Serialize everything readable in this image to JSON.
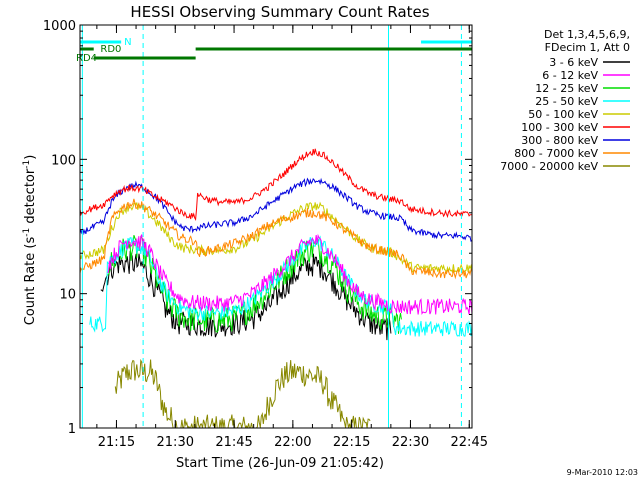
{
  "chart_data": {
    "type": "line",
    "title": "HESSI Observing Summary Count Rates",
    "xlabel": "Start Time (26-Jun-09 21:05:42)",
    "ylabel": "Count Rate (s",
    "ylabel_sup1": "-1",
    "ylabel_mid": " detector",
    "ylabel_sup2": "-1",
    "ylabel_end": ")",
    "yscale": "log",
    "ylim": [
      1,
      1000
    ],
    "xlim_minutes": [
      0,
      100
    ],
    "ytick_labels": [
      "1",
      "10",
      "100",
      "1000"
    ],
    "ytick_values": [
      1,
      10,
      100,
      1000
    ],
    "xtick_labels": [
      "21:15",
      "21:30",
      "21:45",
      "22:00",
      "22:15",
      "22:30",
      "22:45"
    ],
    "xtick_values_minutes": [
      9.3,
      24.3,
      39.3,
      54.3,
      69.3,
      84.3,
      99.3
    ],
    "legend_header": [
      "Det 1,3,4,5,6,9,",
      "FDecim 1, Att 0"
    ],
    "footer_date": "9-Mar-2010 12:03",
    "flags": [
      {
        "label": "N",
        "color": "#00ffff",
        "segments": [
          [
            0,
            10.5
          ],
          [
            87,
            100
          ]
        ]
      },
      {
        "label": "RD0",
        "color": "#007700",
        "segments": [
          [
            0,
            3.5
          ],
          [
            29.5,
            100
          ]
        ]
      },
      {
        "label": "RD4",
        "color": "#007700",
        "segments": [
          [
            3.5,
            29.5
          ]
        ]
      }
    ],
    "vlines": [
      {
        "minute": 0.6,
        "color": "#00ffff",
        "style": "solid"
      },
      {
        "minute": 16.1,
        "color": "#00ffff",
        "style": "dashed"
      },
      {
        "minute": 78.7,
        "color": "#00ffff",
        "style": "solid"
      },
      {
        "minute": 97.3,
        "color": "#00ffff",
        "style": "dashed"
      }
    ],
    "series": [
      {
        "name": "3 - 6 keV",
        "color": "#000000",
        "start": 5.3,
        "end": 79.3,
        "points": [
          [
            5.3,
            12
          ],
          [
            6.5,
            13
          ],
          [
            8,
            15.5
          ],
          [
            10,
            16.8
          ],
          [
            13,
            17
          ],
          [
            16,
            16
          ],
          [
            18,
            13
          ],
          [
            20,
            10
          ],
          [
            22,
            7.5
          ],
          [
            25,
            6
          ],
          [
            28,
            6
          ],
          [
            31,
            5.8
          ],
          [
            35,
            5.8
          ],
          [
            40,
            6
          ],
          [
            44,
            6.5
          ],
          [
            48,
            8
          ],
          [
            52,
            11
          ],
          [
            55,
            14
          ],
          [
            58,
            16
          ],
          [
            60,
            16.5
          ],
          [
            62,
            15.5
          ],
          [
            65,
            12
          ],
          [
            68,
            9
          ],
          [
            71,
            7.2
          ],
          [
            74,
            6
          ],
          [
            77,
            5.5
          ],
          [
            79.3,
            5.5
          ]
        ],
        "noise": 0.09
      },
      {
        "name": "6 - 12 keV",
        "color": "#ff00ff",
        "start": 7,
        "end": 100,
        "points": [
          [
            7,
            16
          ],
          [
            9,
            20
          ],
          [
            11,
            24
          ],
          [
            13,
            25
          ],
          [
            16,
            24
          ],
          [
            18,
            20
          ],
          [
            20,
            15
          ],
          [
            22,
            12
          ],
          [
            25,
            9.5
          ],
          [
            28,
            8.6
          ],
          [
            32,
            8.5
          ],
          [
            36,
            8.4
          ],
          [
            40,
            8.8
          ],
          [
            44,
            10
          ],
          [
            48,
            12.5
          ],
          [
            52,
            16
          ],
          [
            55,
            20
          ],
          [
            58,
            24
          ],
          [
            60,
            25
          ],
          [
            62,
            23
          ],
          [
            65,
            18
          ],
          [
            68,
            13
          ],
          [
            71,
            10
          ],
          [
            74,
            9
          ],
          [
            77,
            8.5
          ],
          [
            80,
            8
          ],
          [
            83,
            8
          ],
          [
            88,
            8
          ],
          [
            95,
            8
          ],
          [
            100,
            8
          ]
        ],
        "noise": 0.06
      },
      {
        "name": "12 - 25 keV",
        "color": "#00dd00",
        "start": 7,
        "end": 82,
        "points": [
          [
            7,
            16
          ],
          [
            9,
            18
          ],
          [
            11,
            21
          ],
          [
            13,
            22
          ],
          [
            16,
            21
          ],
          [
            18,
            16
          ],
          [
            20,
            12
          ],
          [
            22,
            9
          ],
          [
            25,
            7
          ],
          [
            28,
            6.5
          ],
          [
            32,
            6.3
          ],
          [
            36,
            6.3
          ],
          [
            40,
            6.6
          ],
          [
            44,
            8
          ],
          [
            48,
            10.5
          ],
          [
            52,
            14
          ],
          [
            55,
            18
          ],
          [
            58,
            21
          ],
          [
            60,
            22
          ],
          [
            62,
            20
          ],
          [
            65,
            16
          ],
          [
            68,
            11
          ],
          [
            71,
            8.5
          ],
          [
            74,
            7.2
          ],
          [
            77,
            6.6
          ],
          [
            80,
            6.4
          ],
          [
            82,
            6.2
          ]
        ],
        "noise": 0.1
      },
      {
        "name": "25 - 50 keV",
        "color": "#00ffff",
        "start": 2.5,
        "end": 100,
        "points": [
          [
            2.5,
            6
          ],
          [
            6.5,
            6
          ],
          [
            7,
            17
          ],
          [
            9,
            19
          ],
          [
            11,
            22
          ],
          [
            13,
            23
          ],
          [
            16,
            22
          ],
          [
            18,
            18
          ],
          [
            20,
            13
          ],
          [
            22,
            10
          ],
          [
            25,
            8
          ],
          [
            28,
            7.4
          ],
          [
            32,
            7.2
          ],
          [
            36,
            7.2
          ],
          [
            40,
            7.5
          ],
          [
            44,
            8.8
          ],
          [
            48,
            11.5
          ],
          [
            52,
            15
          ],
          [
            55,
            19
          ],
          [
            58,
            23
          ],
          [
            60,
            25
          ],
          [
            62,
            23
          ],
          [
            65,
            18
          ],
          [
            68,
            13
          ],
          [
            71,
            10
          ],
          [
            74,
            8.5
          ],
          [
            77,
            8
          ],
          [
            79,
            8
          ],
          [
            80.3,
            5.6
          ],
          [
            84,
            5.5
          ],
          [
            90,
            5.5
          ],
          [
            95,
            5.5
          ],
          [
            100,
            5.5
          ]
        ],
        "noise": 0.06
      },
      {
        "name": "50 - 100 keV",
        "color": "#cccc00",
        "start": 0,
        "end": 100,
        "points": [
          [
            0,
            19
          ],
          [
            3,
            20
          ],
          [
            6,
            21
          ],
          [
            8,
            30
          ],
          [
            10,
            40
          ],
          [
            12,
            44
          ],
          [
            14,
            45
          ],
          [
            16,
            43
          ],
          [
            18,
            38
          ],
          [
            20,
            33
          ],
          [
            22,
            28
          ],
          [
            24,
            24
          ],
          [
            26,
            22
          ],
          [
            28,
            21.5
          ],
          [
            30,
            21
          ],
          [
            33,
            21
          ],
          [
            36,
            21
          ],
          [
            40,
            22
          ],
          [
            44,
            25
          ],
          [
            48,
            30
          ],
          [
            52,
            36
          ],
          [
            56,
            42
          ],
          [
            58,
            44
          ],
          [
            60,
            45
          ],
          [
            62,
            43
          ],
          [
            65,
            36
          ],
          [
            68,
            30
          ],
          [
            71,
            25
          ],
          [
            74,
            22
          ],
          [
            77,
            21
          ],
          [
            80,
            20
          ],
          [
            82,
            18
          ],
          [
            85,
            15.5
          ],
          [
            90,
            15.5
          ],
          [
            95,
            15.5
          ],
          [
            100,
            15.5
          ]
        ],
        "noise": 0.035
      },
      {
        "name": "100 - 300 keV",
        "color": "#ff0000",
        "start": 0,
        "end": 100,
        "points": [
          [
            0,
            40
          ],
          [
            2,
            42
          ],
          [
            4,
            44
          ],
          [
            6,
            46
          ],
          [
            8,
            53
          ],
          [
            10,
            58
          ],
          [
            12,
            61
          ],
          [
            14,
            61
          ],
          [
            16,
            60
          ],
          [
            18,
            55
          ],
          [
            20,
            51
          ],
          [
            22,
            48
          ],
          [
            24,
            44
          ],
          [
            26,
            40
          ],
          [
            28,
            38
          ],
          [
            29.5,
            37
          ],
          [
            30,
            55
          ],
          [
            33,
            50
          ],
          [
            36,
            48
          ],
          [
            40,
            48
          ],
          [
            44,
            52
          ],
          [
            48,
            62
          ],
          [
            52,
            78
          ],
          [
            55,
            95
          ],
          [
            58,
            110
          ],
          [
            60,
            115
          ],
          [
            62,
            108
          ],
          [
            65,
            92
          ],
          [
            68,
            75
          ],
          [
            71,
            62
          ],
          [
            74,
            55
          ],
          [
            77,
            52
          ],
          [
            80,
            50
          ],
          [
            82,
            49
          ],
          [
            84,
            43
          ],
          [
            88,
            41
          ],
          [
            92,
            40
          ],
          [
            96,
            39
          ],
          [
            100,
            39
          ]
        ],
        "noise": 0.025
      },
      {
        "name": "300 - 800 keV",
        "color": "#0000dd",
        "start": 0,
        "end": 100,
        "points": [
          [
            0,
            28
          ],
          [
            2,
            30
          ],
          [
            4,
            32
          ],
          [
            6,
            34
          ],
          [
            8,
            48
          ],
          [
            10,
            56
          ],
          [
            12,
            62
          ],
          [
            14,
            64
          ],
          [
            16,
            62
          ],
          [
            18,
            56
          ],
          [
            20,
            50
          ],
          [
            22,
            42
          ],
          [
            24,
            35
          ],
          [
            26,
            31
          ],
          [
            28,
            30
          ],
          [
            30,
            31
          ],
          [
            33,
            32
          ],
          [
            36,
            33
          ],
          [
            40,
            34
          ],
          [
            44,
            38
          ],
          [
            48,
            46
          ],
          [
            52,
            55
          ],
          [
            55,
            63
          ],
          [
            58,
            68
          ],
          [
            60,
            70
          ],
          [
            62,
            68
          ],
          [
            65,
            61
          ],
          [
            68,
            52
          ],
          [
            71,
            44
          ],
          [
            74,
            40
          ],
          [
            77,
            38
          ],
          [
            80,
            37
          ],
          [
            82,
            36
          ],
          [
            84,
            30
          ],
          [
            88,
            28
          ],
          [
            92,
            27
          ],
          [
            96,
            27
          ],
          [
            100,
            26
          ]
        ],
        "noise": 0.025
      },
      {
        "name": "800 - 7000 keV",
        "color": "#ff8800",
        "start": 0,
        "end": 100,
        "points": [
          [
            0,
            15
          ],
          [
            2,
            16
          ],
          [
            4,
            17
          ],
          [
            6,
            18
          ],
          [
            8,
            35
          ],
          [
            10,
            42
          ],
          [
            12,
            46
          ],
          [
            14,
            47
          ],
          [
            16,
            45
          ],
          [
            18,
            41
          ],
          [
            20,
            37
          ],
          [
            22,
            33
          ],
          [
            24,
            29
          ],
          [
            26,
            26
          ],
          [
            28,
            25
          ],
          [
            29.5,
            25
          ],
          [
            30,
            20
          ],
          [
            33,
            21
          ],
          [
            36,
            22
          ],
          [
            40,
            24
          ],
          [
            44,
            27
          ],
          [
            48,
            32
          ],
          [
            52,
            36
          ],
          [
            55,
            38
          ],
          [
            58,
            40
          ],
          [
            60,
            40
          ],
          [
            62,
            38
          ],
          [
            65,
            34
          ],
          [
            68,
            29
          ],
          [
            71,
            25
          ],
          [
            74,
            22
          ],
          [
            77,
            21
          ],
          [
            80,
            20
          ],
          [
            82,
            19
          ],
          [
            84,
            15
          ],
          [
            88,
            14.5
          ],
          [
            92,
            14
          ],
          [
            96,
            14
          ],
          [
            100,
            14
          ]
        ],
        "noise": 0.035
      },
      {
        "name": "7000 - 20000 keV",
        "color": "#888800",
        "start": 9,
        "end": 74,
        "points": [
          [
            9,
            1.9
          ],
          [
            10,
            2.2
          ],
          [
            12,
            2.6
          ],
          [
            14,
            2.7
          ],
          [
            16,
            2.6
          ],
          [
            18,
            2.6
          ],
          [
            19.5,
            2.2
          ],
          [
            20.5,
            1.7
          ],
          [
            22,
            1.3
          ],
          [
            25,
            1
          ],
          [
            46,
            1
          ],
          [
            48,
            1.5
          ],
          [
            50,
            2
          ],
          [
            52,
            2.4
          ],
          [
            54,
            2.6
          ],
          [
            56,
            2.6
          ],
          [
            58,
            2.5
          ],
          [
            60,
            2.4
          ],
          [
            62,
            2.2
          ],
          [
            64,
            1.6
          ],
          [
            66,
            1.3
          ],
          [
            68,
            1
          ],
          [
            74,
            1
          ]
        ],
        "noise": 0.1
      }
    ]
  }
}
